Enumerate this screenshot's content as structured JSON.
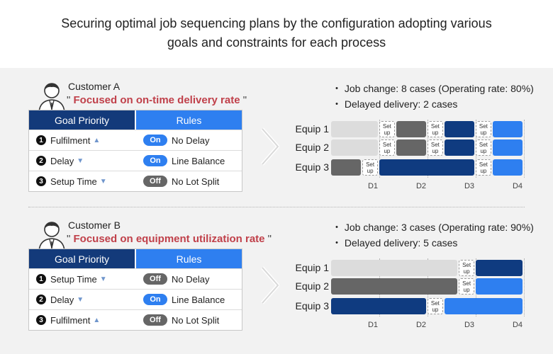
{
  "title_line1": "Securing optimal job sequencing plans by the configuration adopting various",
  "title_line2": "goals and constraints for each process",
  "table_headers": {
    "goal": "Goal Priority",
    "rules": "Rules"
  },
  "day_labels": [
    "D1",
    "D2",
    "D3",
    "D4"
  ],
  "setup_text": {
    "line1": "Set",
    "line2": "up"
  },
  "customers": [
    {
      "name": "Customer A",
      "focus_open": "\" ",
      "focus": "Focused on on-time delivery rate",
      "focus_close": " \"",
      "stats": [
        "・ Job change: 8 cases (Operating rate: 80%)",
        "・ Delayed delivery: 2 cases"
      ],
      "goals": [
        {
          "num": "1",
          "label": "Fulfilment",
          "arrow": "▲"
        },
        {
          "num": "2",
          "label": "Delay",
          "arrow": "▼"
        },
        {
          "num": "3",
          "label": "Setup Time",
          "arrow": "▼"
        }
      ],
      "rules": [
        {
          "state": "On",
          "label": "No Delay"
        },
        {
          "state": "On",
          "label": "Line Balance"
        },
        {
          "state": "Off",
          "label": "No Lot Split"
        }
      ],
      "equips": [
        {
          "label": "Equip 1",
          "segments": [
            {
              "type": "light",
              "start": 0.0,
              "end": 1.0
            },
            {
              "type": "setup",
              "start": 1.0,
              "end": 1.35
            },
            {
              "type": "gray",
              "start": 1.35,
              "end": 2.0
            },
            {
              "type": "setup",
              "start": 2.0,
              "end": 2.35
            },
            {
              "type": "navy",
              "start": 2.35,
              "end": 3.0
            },
            {
              "type": "setup",
              "start": 3.0,
              "end": 3.35
            },
            {
              "type": "blue",
              "start": 3.35,
              "end": 4.0
            }
          ]
        },
        {
          "label": "Equip 2",
          "segments": [
            {
              "type": "light",
              "start": 0.0,
              "end": 1.0
            },
            {
              "type": "setup",
              "start": 1.0,
              "end": 1.35
            },
            {
              "type": "gray",
              "start": 1.35,
              "end": 2.0
            },
            {
              "type": "setup",
              "start": 2.0,
              "end": 2.35
            },
            {
              "type": "navy",
              "start": 2.35,
              "end": 3.0
            },
            {
              "type": "setup",
              "start": 3.0,
              "end": 3.35
            },
            {
              "type": "blue",
              "start": 3.35,
              "end": 4.0
            }
          ]
        },
        {
          "label": "Equip 3",
          "segments": [
            {
              "type": "gray",
              "start": 0.0,
              "end": 0.65
            },
            {
              "type": "setup",
              "start": 0.65,
              "end": 1.0
            },
            {
              "type": "navy",
              "start": 1.0,
              "end": 3.0
            },
            {
              "type": "setup",
              "start": 3.0,
              "end": 3.35
            },
            {
              "type": "blue",
              "start": 3.35,
              "end": 4.0
            }
          ]
        }
      ]
    },
    {
      "name": "Customer B",
      "focus_open": "\" ",
      "focus": "Focused on equipment utilization rate",
      "focus_close": " \"",
      "stats": [
        "・ Job change: 3 cases (Operating rate: 90%)",
        "・ Delayed delivery: 5 cases"
      ],
      "goals": [
        {
          "num": "1",
          "label": "Setup Time",
          "arrow": "▼"
        },
        {
          "num": "2",
          "label": "Delay",
          "arrow": "▼"
        },
        {
          "num": "3",
          "label": "Fulfilment",
          "arrow": "▲"
        }
      ],
      "rules": [
        {
          "state": "Off",
          "label": "No Delay"
        },
        {
          "state": "On",
          "label": "Line Balance"
        },
        {
          "state": "Off",
          "label": "No Lot Split"
        }
      ],
      "equips": [
        {
          "label": "Equip 1",
          "segments": [
            {
              "type": "light",
              "start": 0.0,
              "end": 2.65
            },
            {
              "type": "setup",
              "start": 2.65,
              "end": 3.0
            },
            {
              "type": "navy",
              "start": 3.0,
              "end": 4.0
            }
          ]
        },
        {
          "label": "Equip 2",
          "segments": [
            {
              "type": "gray",
              "start": 0.0,
              "end": 2.65
            },
            {
              "type": "setup",
              "start": 2.65,
              "end": 3.0
            },
            {
              "type": "blue",
              "start": 3.0,
              "end": 4.0
            }
          ]
        },
        {
          "label": "Equip 3",
          "segments": [
            {
              "type": "navy",
              "start": 0.0,
              "end": 2.0
            },
            {
              "type": "setup",
              "start": 2.0,
              "end": 2.35
            },
            {
              "type": "blue",
              "start": 2.35,
              "end": 4.0
            }
          ]
        }
      ]
    }
  ]
}
